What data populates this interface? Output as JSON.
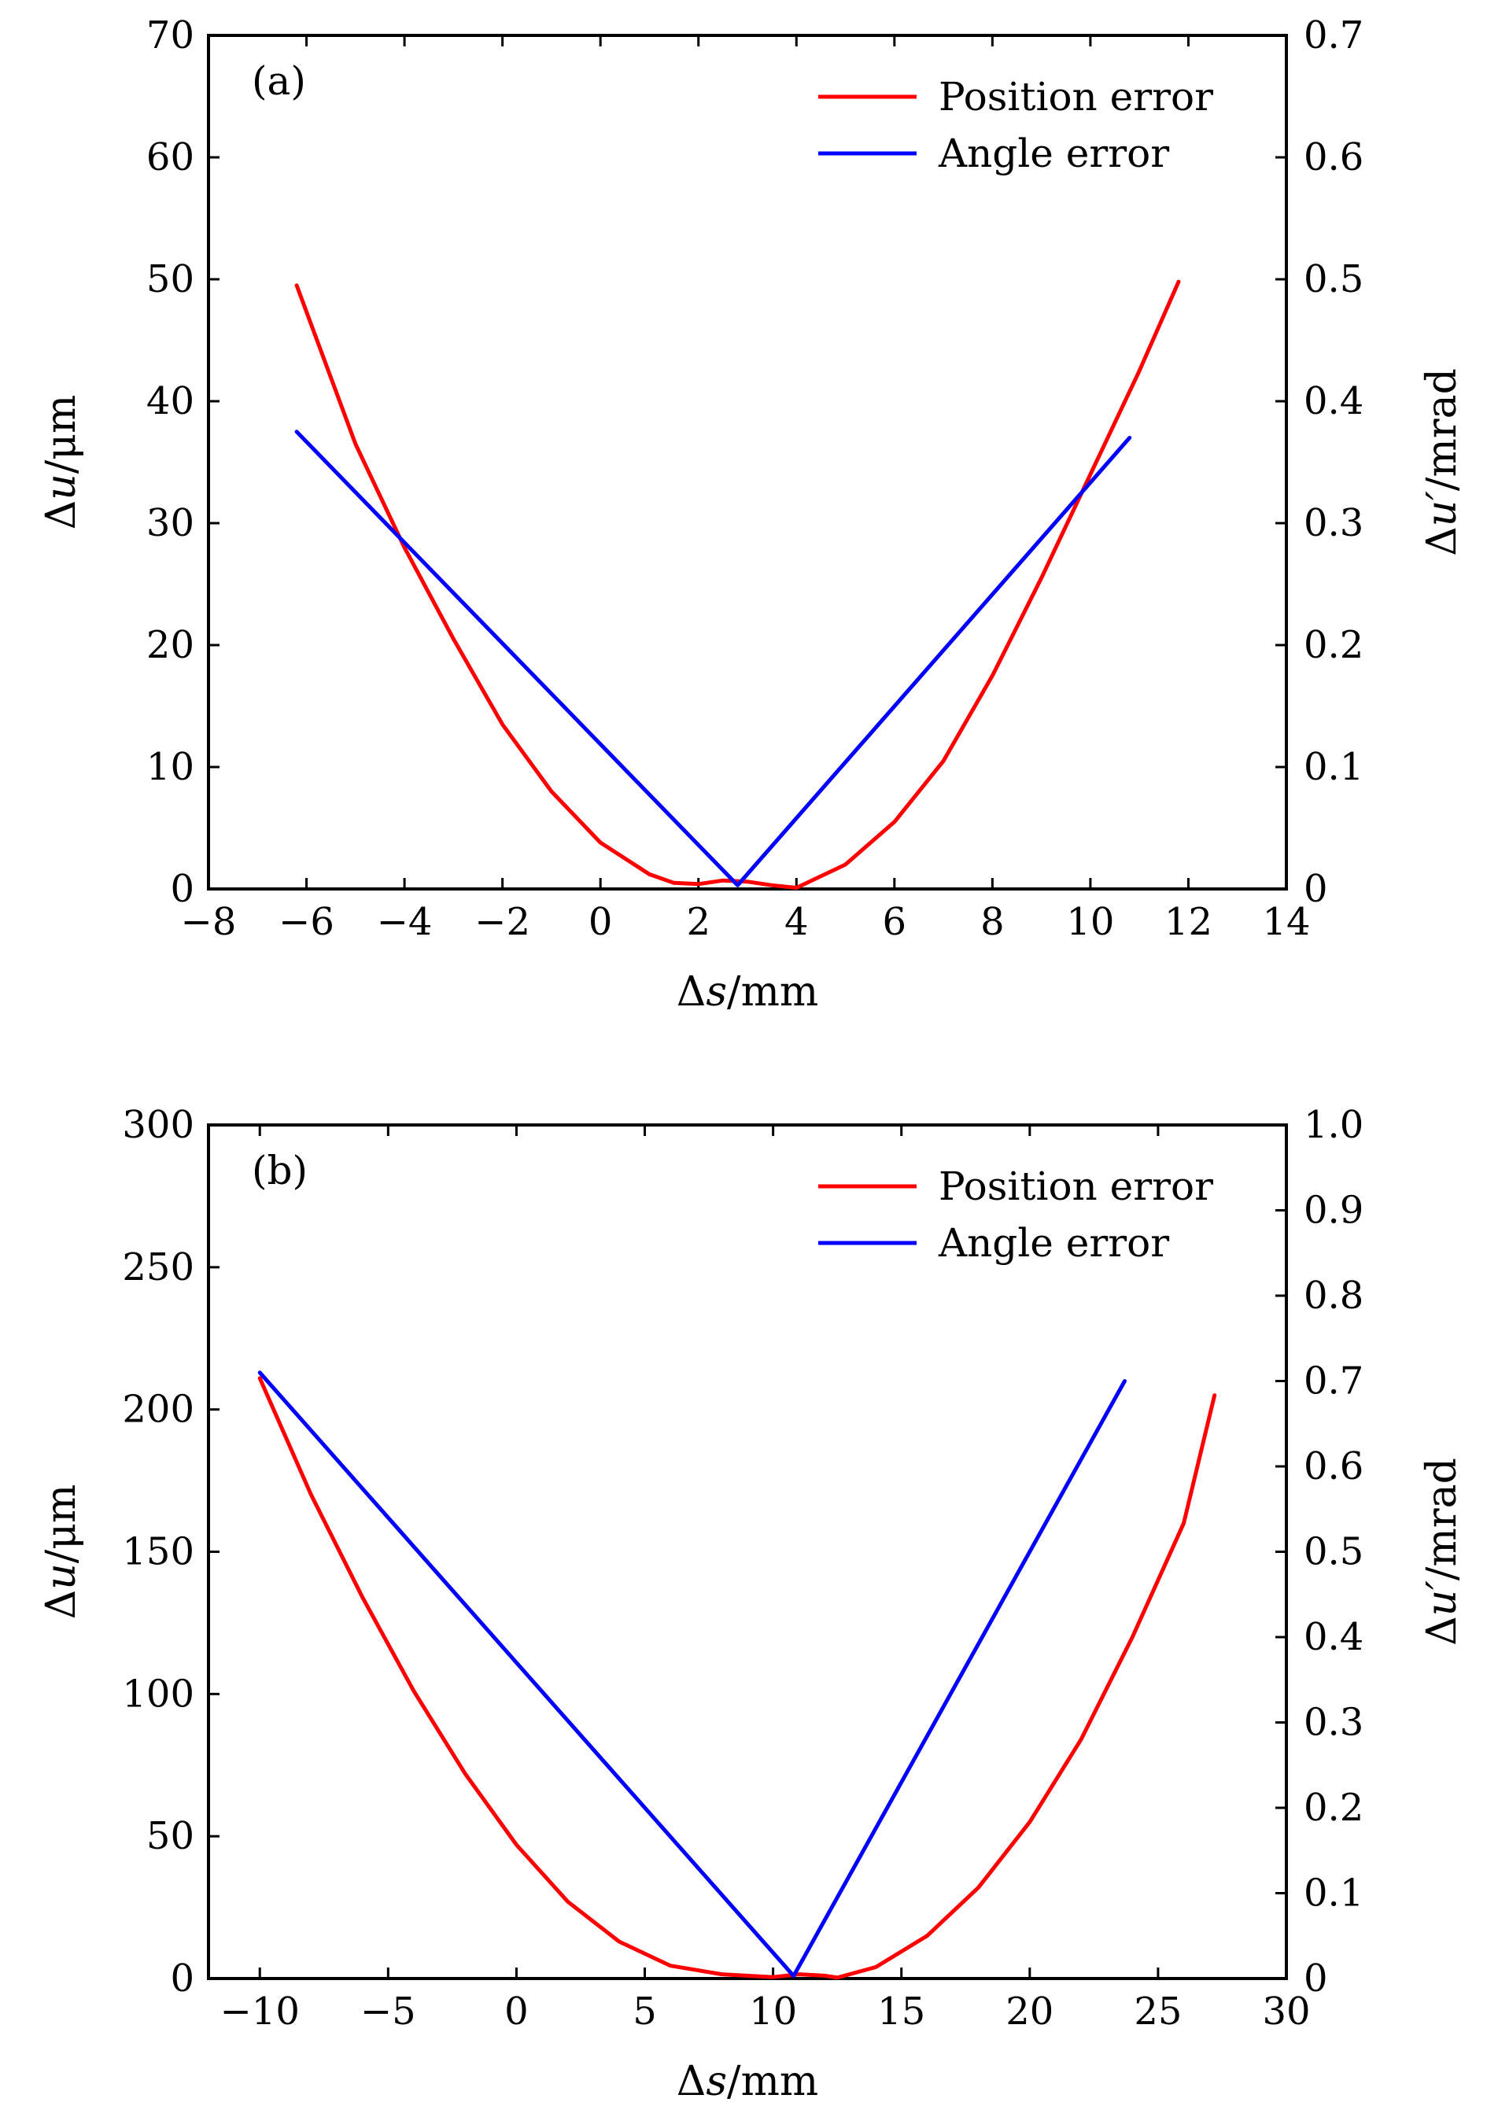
{
  "colors": {
    "position": "#ff0000",
    "angle": "#0000ff"
  },
  "chart_data": [
    {
      "type": "line",
      "panel_label": "(a)",
      "xlabel": "Δs/mm",
      "ylabel_left": "Δu/μm",
      "ylabel_right": "Δu′/mrad",
      "xlim": [
        -8,
        14
      ],
      "ylim_left": [
        0,
        70
      ],
      "ylim_right": [
        0,
        0.7
      ],
      "xticks": [
        "−8",
        "−6",
        "−4",
        "−2",
        "0",
        "2",
        "4",
        "6",
        "8",
        "10",
        "12",
        "14"
      ],
      "xtick_values": [
        -8,
        -6,
        -4,
        -2,
        0,
        2,
        4,
        6,
        8,
        10,
        12,
        14
      ],
      "yticks_left": [
        "0",
        "10",
        "20",
        "30",
        "40",
        "50",
        "60",
        "70"
      ],
      "ytick_values_left": [
        0,
        10,
        20,
        30,
        40,
        50,
        60,
        70
      ],
      "yticks_right": [
        "0",
        "0.1",
        "0.2",
        "0.3",
        "0.4",
        "0.5",
        "0.6",
        "0.7"
      ],
      "ytick_values_right": [
        0,
        0.1,
        0.2,
        0.3,
        0.4,
        0.5,
        0.6,
        0.7
      ],
      "legend": {
        "placement": "top-right",
        "entries": [
          "Position error",
          "Angle error"
        ]
      },
      "grid": false,
      "series": [
        {
          "name": "Position error",
          "axis": "left",
          "x": [
            -6.2,
            -5,
            -4,
            -3,
            -2,
            -1,
            0,
            1,
            1.5,
            2,
            2.5,
            3,
            3.5,
            4,
            5,
            6,
            7,
            8,
            9,
            10,
            11,
            11.8
          ],
          "y": [
            49.5,
            36.5,
            28.0,
            20.5,
            13.5,
            8.0,
            3.8,
            1.2,
            0.5,
            0.4,
            0.7,
            0.6,
            0.3,
            0.1,
            2.0,
            5.5,
            10.5,
            17.5,
            25.5,
            34.0,
            42.5,
            49.8
          ]
        },
        {
          "name": "Angle error",
          "axis": "right",
          "x": [
            -6.2,
            2.8,
            10.8
          ],
          "y": [
            0.375,
            0.003,
            0.37
          ]
        }
      ]
    },
    {
      "type": "line",
      "panel_label": "(b)",
      "xlabel": "Δs/mm",
      "ylabel_left": "Δu/μm",
      "ylabel_right": "Δu′/mrad",
      "xlim": [
        -12,
        30
      ],
      "ylim_left": [
        0,
        300
      ],
      "ylim_right": [
        0,
        1.0
      ],
      "xticks": [
        "−10",
        "−5",
        "0",
        "5",
        "10",
        "15",
        "20",
        "25",
        "30"
      ],
      "xtick_values": [
        -10,
        -5,
        0,
        5,
        10,
        15,
        20,
        25,
        30
      ],
      "yticks_left": [
        "0",
        "50",
        "100",
        "150",
        "200",
        "250",
        "300"
      ],
      "ytick_values_left": [
        0,
        50,
        100,
        150,
        200,
        250,
        300
      ],
      "yticks_right": [
        "0",
        "0.1",
        "0.2",
        "0.3",
        "0.4",
        "0.5",
        "0.6",
        "0.7",
        "0.8",
        "0.9",
        "1.0"
      ],
      "ytick_values_right": [
        0,
        0.1,
        0.2,
        0.3,
        0.4,
        0.5,
        0.6,
        0.7,
        0.8,
        0.9,
        1.0
      ],
      "legend": {
        "placement": "top-right",
        "entries": [
          "Position error",
          "Angle error"
        ]
      },
      "grid": false,
      "series": [
        {
          "name": "Position error",
          "axis": "left",
          "x": [
            -10,
            -8,
            -6,
            -4,
            -2,
            0,
            2,
            4,
            6,
            8,
            10,
            11,
            12,
            12.5,
            14,
            16,
            18,
            20,
            22,
            24,
            26,
            27.2
          ],
          "y": [
            211,
            170,
            134,
            101,
            72,
            47,
            27,
            13,
            4.5,
            1.5,
            0.5,
            1.5,
            1.0,
            0.3,
            4.0,
            15,
            32,
            55,
            84,
            120,
            160,
            205
          ]
        },
        {
          "name": "Angle error",
          "axis": "right",
          "x": [
            -10,
            10.8,
            23.7
          ],
          "y": [
            0.71,
            0.003,
            0.7
          ]
        }
      ]
    }
  ]
}
